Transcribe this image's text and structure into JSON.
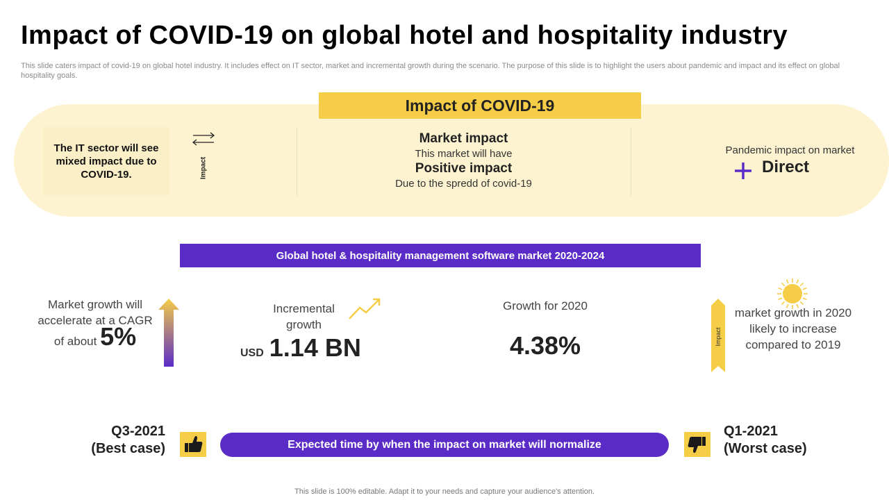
{
  "title": "Impact of COVID-19 on global hotel and hospitality industry",
  "subtitle": "This slide caters impact of covid-19 on global hotel industry. It includes effect on IT sector, market and incremental growth during the scenario. The purpose of this slide is to highlight the users about pandemic and impact and its effect on global hospitality goals.",
  "impact_section": {
    "header": "Impact of COVID-19",
    "it_sector": "The IT sector will see mixed impact due to COVID-19.",
    "impact_label": "Impact",
    "market_title": "Market impact",
    "market_line1": "This market will have",
    "market_positive": "Positive impact",
    "market_line2": "Due to the spredd of covid-19",
    "pandemic_label": "Pandemic impact on market",
    "direct": "Direct"
  },
  "banner": "Global hotel & hospitality management software market 2020-2024",
  "stats": {
    "cagr_text1": "Market growth will accelerate at a CAGR",
    "cagr_text2": "of about",
    "cagr_value": "5%",
    "incremental_label": "Incremental growth",
    "incremental_currency": "USD",
    "incremental_value": "1.14 BN",
    "growth_label": "Growth for 2020",
    "growth_value": "4.38%",
    "impact_label": "Impact",
    "growth2020_text": "market growth in 2020 likely to increase compared to 2019"
  },
  "timeline": {
    "best_line1": "Q3-2021",
    "best_line2": "(Best case)",
    "normalize": "Expected time by when the impact on market will normalize",
    "worst_line1": "Q1-2021",
    "worst_line2": "(Worst case)"
  },
  "footer": "This slide is 100% editable. Adapt it to your needs and capture your audience's attention.",
  "icons": {
    "arrows": "arrows-exchange-icon",
    "plus": "plus-icon",
    "trend": "trend-up-icon",
    "sun": "sun-icon",
    "thumb_up": "thumbs-up-icon",
    "thumb_down": "thumbs-down-icon"
  },
  "colors": {
    "yellow": "#f5cd47",
    "pale_yellow": "#fdf3d0",
    "purple": "#5b2bc7"
  }
}
